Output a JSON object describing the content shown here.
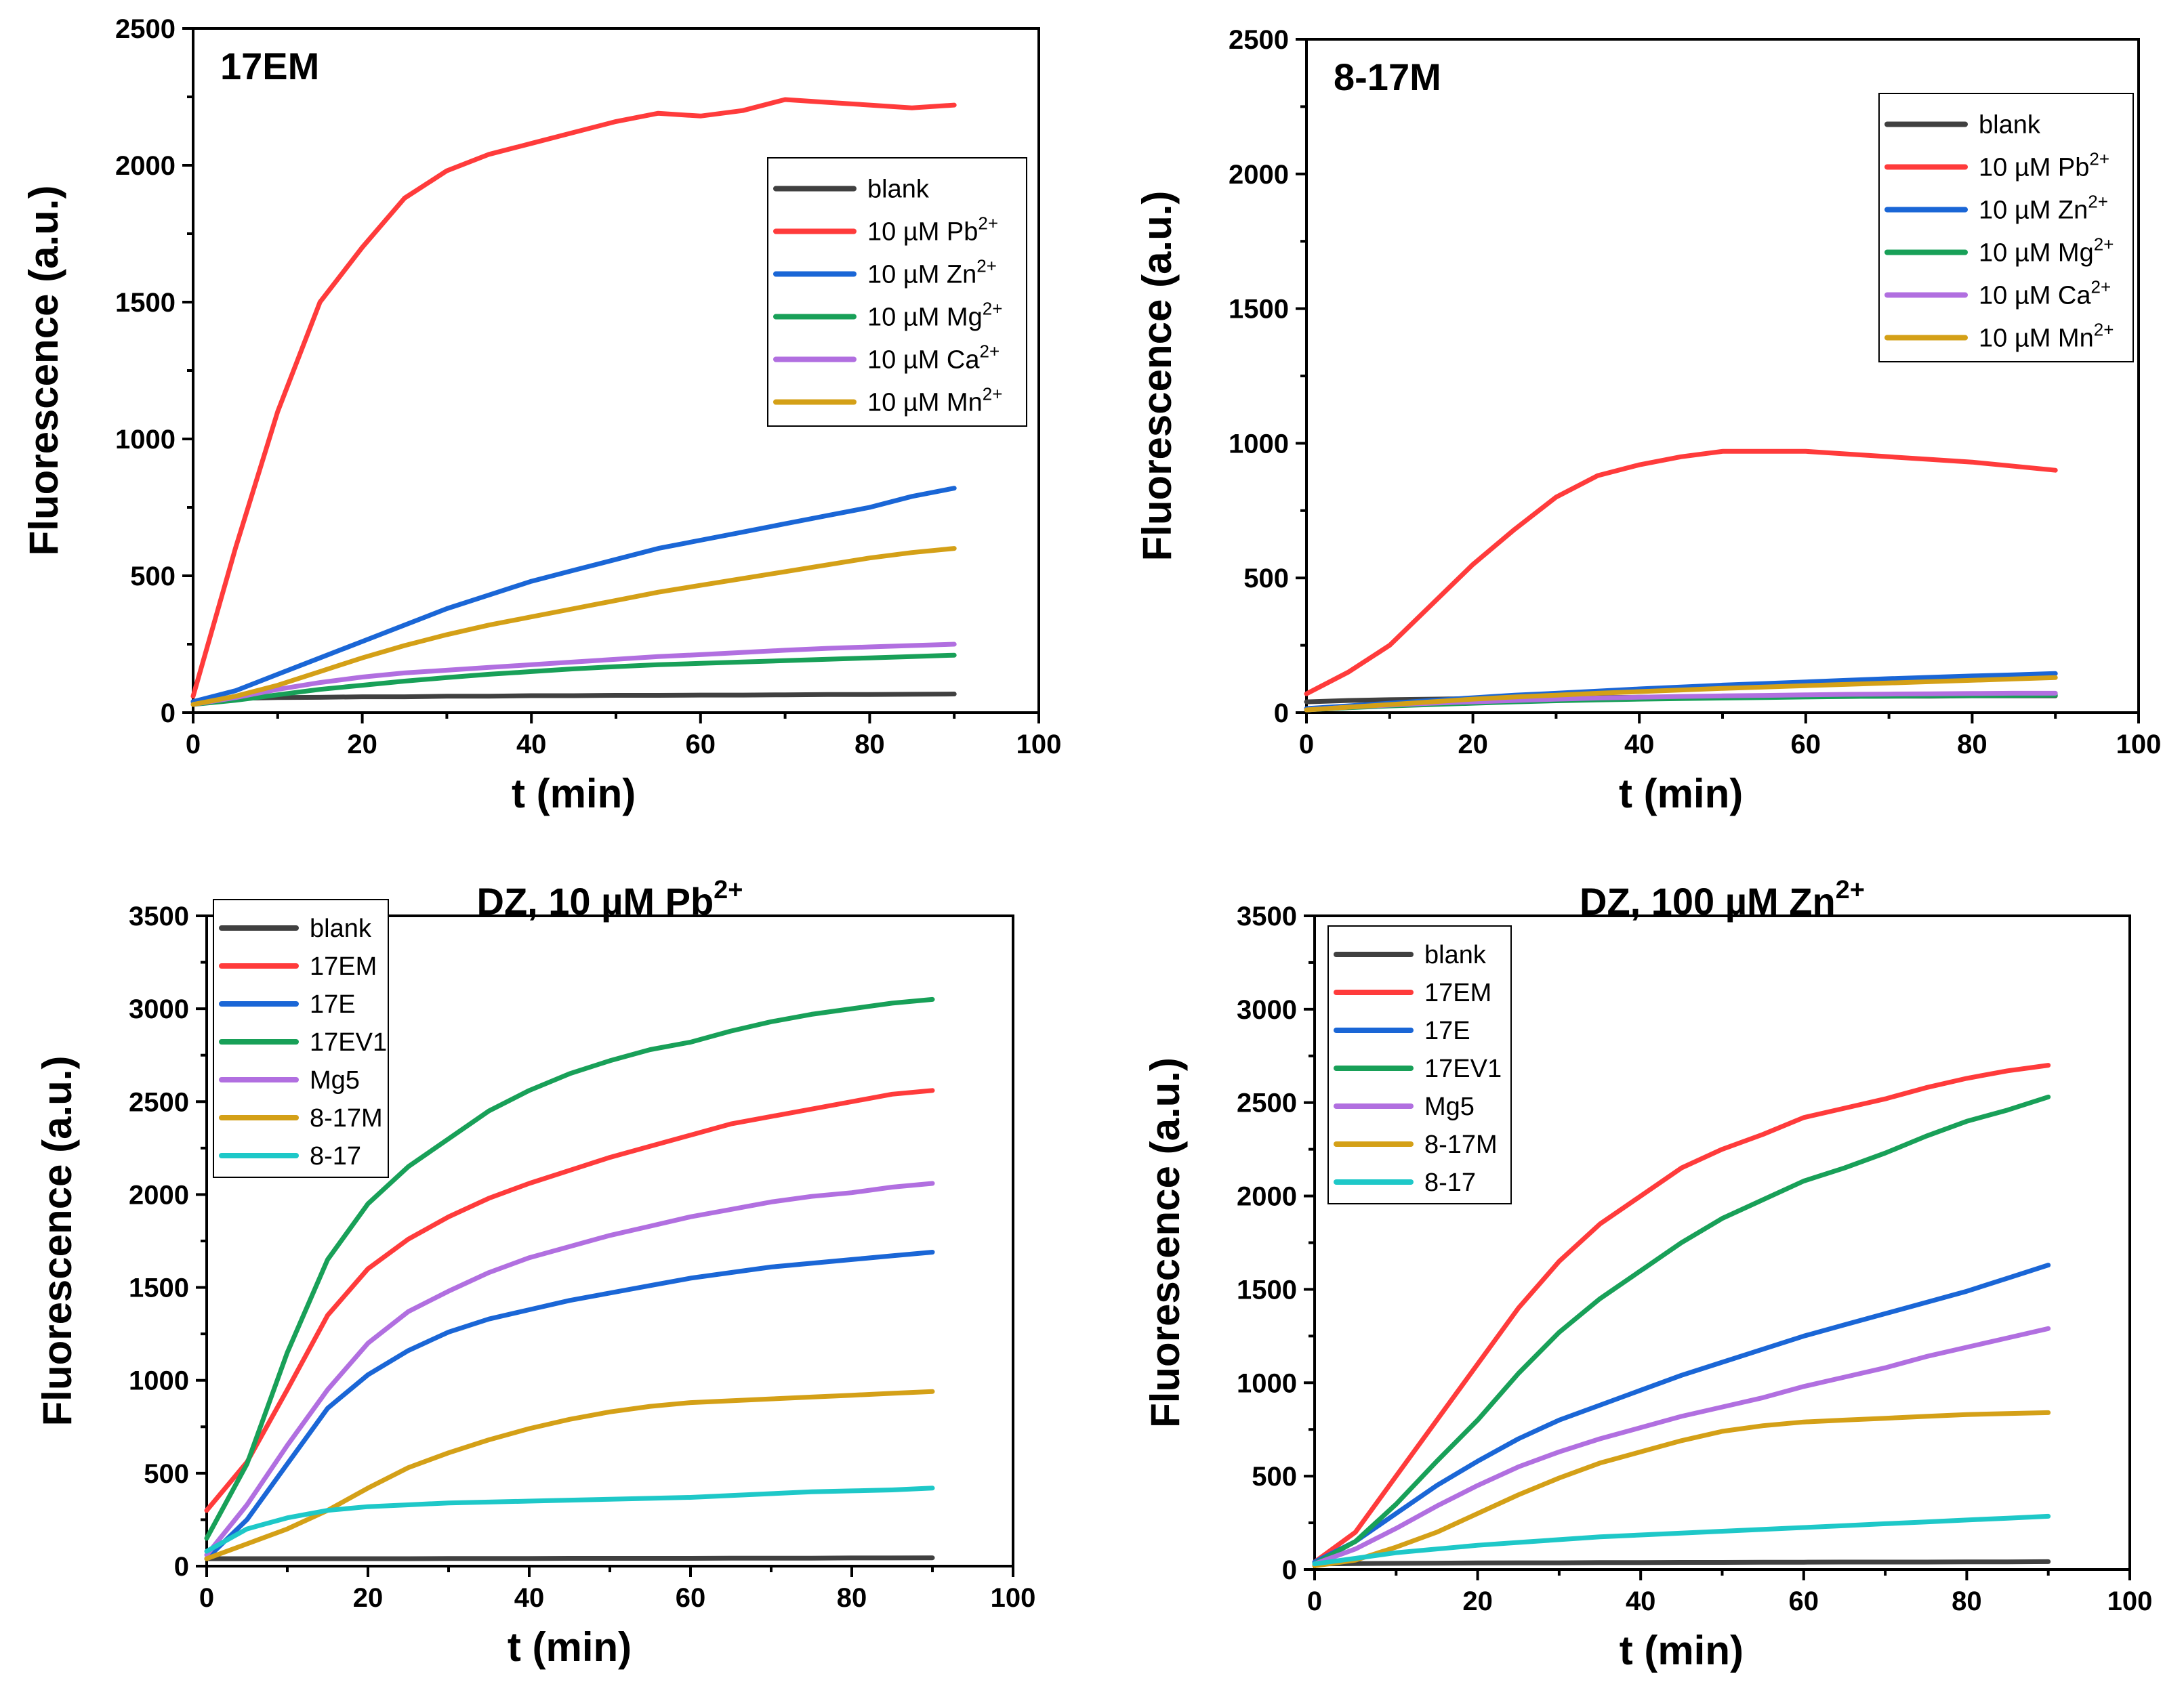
{
  "chart_data": [
    {
      "type": "line",
      "title": "17EM",
      "title_superscript": "",
      "xlabel": "t (min)",
      "ylabel": "Fluorescence (a.u.)",
      "xlim": [
        0,
        100
      ],
      "ylim": [
        0,
        2500
      ],
      "xticks": [
        0,
        20,
        40,
        60,
        80,
        100
      ],
      "yticks": [
        0,
        500,
        1000,
        1500,
        2000,
        2500
      ],
      "grid": false,
      "legend_position": "top-right",
      "x": [
        0,
        5,
        10,
        15,
        20,
        25,
        30,
        35,
        40,
        45,
        50,
        55,
        60,
        65,
        70,
        75,
        80,
        85,
        90
      ],
      "series": [
        {
          "name": "blank",
          "sup": "",
          "color": "#404040",
          "values": [
            40,
            52,
            55,
            56,
            58,
            58,
            60,
            60,
            62,
            62,
            63,
            63,
            64,
            64,
            65,
            66,
            66,
            67,
            68
          ]
        },
        {
          "name": "10 µM Pb",
          "sup": "2+",
          "color": "#ff3b3b",
          "values": [
            60,
            600,
            1100,
            1500,
            1700,
            1880,
            1980,
            2040,
            2080,
            2120,
            2160,
            2190,
            2180,
            2200,
            2240,
            2230,
            2220,
            2210,
            2220
          ]
        },
        {
          "name": "10 µM Zn",
          "sup": "2+",
          "color": "#1a66d6",
          "values": [
            40,
            80,
            140,
            200,
            260,
            320,
            380,
            430,
            480,
            520,
            560,
            600,
            630,
            660,
            690,
            720,
            750,
            790,
            820
          ]
        },
        {
          "name": "10 µM Mg",
          "sup": "2+",
          "color": "#18a058",
          "values": [
            30,
            45,
            65,
            85,
            100,
            115,
            128,
            140,
            150,
            160,
            168,
            175,
            180,
            185,
            190,
            195,
            200,
            205,
            210
          ]
        },
        {
          "name": "10 µM Ca",
          "sup": "2+",
          "color": "#b16fe0",
          "values": [
            30,
            55,
            85,
            110,
            130,
            145,
            155,
            165,
            175,
            185,
            195,
            205,
            212,
            220,
            228,
            235,
            240,
            245,
            250
          ]
        },
        {
          "name": "10 µM Mn",
          "sup": "2+",
          "color": "#d4a017",
          "values": [
            30,
            60,
            100,
            150,
            200,
            245,
            285,
            320,
            350,
            380,
            410,
            440,
            465,
            490,
            515,
            540,
            565,
            585,
            600
          ]
        }
      ]
    },
    {
      "type": "line",
      "title": "8-17M",
      "title_superscript": "",
      "xlabel": "t (min)",
      "ylabel": "Fluorescence (a.u.)",
      "xlim": [
        0,
        100
      ],
      "ylim": [
        0,
        2500
      ],
      "xticks": [
        0,
        20,
        40,
        60,
        80,
        100
      ],
      "yticks": [
        0,
        500,
        1000,
        1500,
        2000,
        2500
      ],
      "grid": false,
      "legend_position": "top-right",
      "x": [
        0,
        5,
        10,
        15,
        20,
        25,
        30,
        35,
        40,
        45,
        50,
        55,
        60,
        65,
        70,
        75,
        80,
        85,
        90
      ],
      "series": [
        {
          "name": "blank",
          "sup": "",
          "color": "#404040",
          "values": [
            40,
            45,
            48,
            50,
            52,
            53,
            55,
            56,
            57,
            58,
            58,
            59,
            60,
            60,
            61,
            61,
            62,
            62,
            62
          ]
        },
        {
          "name": "10 µM Pb",
          "sup": "2+",
          "color": "#ff3b3b",
          "values": [
            70,
            150,
            250,
            400,
            550,
            680,
            800,
            880,
            920,
            950,
            970,
            970,
            970,
            960,
            950,
            940,
            930,
            915,
            900
          ]
        },
        {
          "name": "10 µM Zn",
          "sup": "2+",
          "color": "#1a66d6",
          "values": [
            15,
            25,
            35,
            45,
            55,
            65,
            72,
            80,
            88,
            95,
            102,
            108,
            114,
            120,
            126,
            131,
            136,
            140,
            145
          ]
        },
        {
          "name": "10 µM Mg",
          "sup": "2+",
          "color": "#18a058",
          "values": [
            10,
            18,
            25,
            30,
            35,
            40,
            44,
            47,
            50,
            52,
            54,
            56,
            58,
            60,
            61,
            62,
            63,
            64,
            65
          ]
        },
        {
          "name": "10 µM Ca",
          "sup": "2+",
          "color": "#b16fe0",
          "values": [
            10,
            20,
            28,
            35,
            40,
            45,
            50,
            54,
            57,
            60,
            62,
            64,
            66,
            68,
            69,
            70,
            71,
            72,
            72
          ]
        },
        {
          "name": "10 µM Mn",
          "sup": "2+",
          "color": "#d4a017",
          "values": [
            10,
            20,
            30,
            40,
            50,
            58,
            65,
            72,
            78,
            84,
            90,
            95,
            100,
            105,
            110,
            115,
            120,
            125,
            130
          ]
        }
      ]
    },
    {
      "type": "line",
      "title": "DZ, 10 µM Pb",
      "title_superscript": "2+",
      "xlabel": "t (min)",
      "ylabel": "Fluorescence (a.u.)",
      "xlim": [
        0,
        100
      ],
      "ylim": [
        0,
        3500
      ],
      "xticks": [
        0,
        20,
        40,
        60,
        80,
        100
      ],
      "yticks": [
        0,
        500,
        1000,
        1500,
        2000,
        2500,
        3000,
        3500
      ],
      "grid": false,
      "legend_position": "top-left",
      "x": [
        0,
        5,
        10,
        15,
        20,
        25,
        30,
        35,
        40,
        45,
        50,
        55,
        60,
        65,
        70,
        75,
        80,
        85,
        90
      ],
      "series": [
        {
          "name": "blank",
          "sup": "",
          "color": "#404040",
          "values": [
            40,
            40,
            40,
            40,
            40,
            40,
            41,
            41,
            41,
            42,
            42,
            42,
            42,
            43,
            43,
            43,
            44,
            44,
            45
          ]
        },
        {
          "name": "17EM",
          "sup": "",
          "color": "#ff3b3b",
          "values": [
            300,
            560,
            950,
            1350,
            1600,
            1760,
            1880,
            1980,
            2060,
            2130,
            2200,
            2260,
            2320,
            2380,
            2420,
            2460,
            2500,
            2540,
            2560
          ]
        },
        {
          "name": "17E",
          "sup": "",
          "color": "#1a66d6",
          "values": [
            40,
            250,
            550,
            850,
            1030,
            1160,
            1260,
            1330,
            1380,
            1430,
            1470,
            1510,
            1550,
            1580,
            1610,
            1630,
            1650,
            1670,
            1690
          ]
        },
        {
          "name": "17EV1",
          "sup": "",
          "color": "#18a058",
          "values": [
            150,
            550,
            1150,
            1650,
            1950,
            2150,
            2300,
            2450,
            2560,
            2650,
            2720,
            2780,
            2820,
            2880,
            2930,
            2970,
            3000,
            3030,
            3050
          ]
        },
        {
          "name": "Mg5",
          "sup": "",
          "color": "#b16fe0",
          "values": [
            60,
            330,
            650,
            950,
            1200,
            1370,
            1480,
            1580,
            1660,
            1720,
            1780,
            1830,
            1880,
            1920,
            1960,
            1990,
            2010,
            2040,
            2060
          ]
        },
        {
          "name": "8-17M",
          "sup": "",
          "color": "#d4a017",
          "values": [
            40,
            120,
            200,
            300,
            420,
            530,
            610,
            680,
            740,
            790,
            830,
            860,
            880,
            890,
            900,
            910,
            920,
            930,
            940
          ]
        },
        {
          "name": "8-17",
          "sup": "",
          "color": "#1ec8c8",
          "values": [
            80,
            200,
            260,
            300,
            320,
            330,
            340,
            345,
            350,
            355,
            360,
            365,
            370,
            380,
            390,
            400,
            405,
            410,
            420
          ]
        }
      ]
    },
    {
      "type": "line",
      "title": "DZ, 100 µM Zn",
      "title_superscript": "2+",
      "xlabel": "t (min)",
      "ylabel": "Fluorescence (a.u.)",
      "xlim": [
        0,
        100
      ],
      "ylim": [
        0,
        3500
      ],
      "xticks": [
        0,
        20,
        40,
        60,
        80,
        100
      ],
      "yticks": [
        0,
        500,
        1000,
        1500,
        2000,
        2500,
        3000,
        3500
      ],
      "grid": false,
      "legend_position": "top-left",
      "x": [
        0,
        5,
        10,
        15,
        20,
        25,
        30,
        35,
        40,
        45,
        50,
        55,
        60,
        65,
        70,
        75,
        80,
        85,
        90
      ],
      "series": [
        {
          "name": "blank",
          "sup": "",
          "color": "#404040",
          "values": [
            30,
            32,
            33,
            34,
            35,
            36,
            36,
            37,
            37,
            38,
            38,
            39,
            39,
            40,
            40,
            40,
            41,
            41,
            42
          ]
        },
        {
          "name": "17EM",
          "sup": "",
          "color": "#ff3b3b",
          "values": [
            40,
            200,
            500,
            800,
            1100,
            1400,
            1650,
            1850,
            2000,
            2150,
            2250,
            2330,
            2420,
            2470,
            2520,
            2580,
            2630,
            2670,
            2700
          ]
        },
        {
          "name": "17E",
          "sup": "",
          "color": "#1a66d6",
          "values": [
            40,
            150,
            300,
            450,
            580,
            700,
            800,
            880,
            960,
            1040,
            1110,
            1180,
            1250,
            1310,
            1370,
            1430,
            1490,
            1560,
            1630
          ]
        },
        {
          "name": "17EV1",
          "sup": "",
          "color": "#18a058",
          "values": [
            30,
            150,
            350,
            580,
            800,
            1050,
            1270,
            1450,
            1600,
            1750,
            1880,
            1980,
            2080,
            2150,
            2230,
            2320,
            2400,
            2460,
            2530
          ]
        },
        {
          "name": "Mg5",
          "sup": "",
          "color": "#b16fe0",
          "values": [
            30,
            110,
            220,
            340,
            450,
            550,
            630,
            700,
            760,
            820,
            870,
            920,
            980,
            1030,
            1080,
            1140,
            1190,
            1240,
            1290
          ]
        },
        {
          "name": "8-17M",
          "sup": "",
          "color": "#d4a017",
          "values": [
            20,
            50,
            120,
            200,
            300,
            400,
            490,
            570,
            630,
            690,
            740,
            770,
            790,
            800,
            810,
            820,
            830,
            835,
            840
          ]
        },
        {
          "name": "8-17",
          "sup": "",
          "color": "#1ec8c8",
          "values": [
            30,
            60,
            90,
            110,
            130,
            145,
            160,
            175,
            185,
            195,
            205,
            215,
            225,
            235,
            245,
            255,
            265,
            275,
            285
          ]
        }
      ]
    }
  ]
}
